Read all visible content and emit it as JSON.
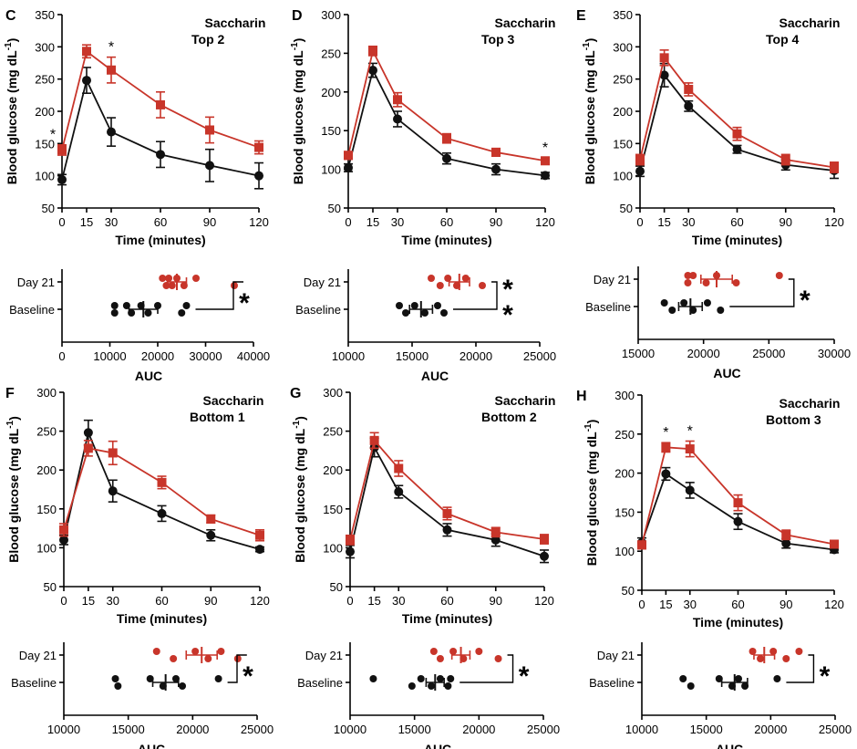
{
  "colors": {
    "day21": "#c8352a",
    "baseline": "#111111",
    "axis": "#000000"
  },
  "labels": {
    "time_axis": "Time (minutes)",
    "glucose_axis": "Blood glucose (mg dL",
    "glucose_unit_sup": "-1",
    "glucose_axis_close": ")",
    "auc_axis": "AUC",
    "group_day21": "Day 21",
    "group_baseline": "Baseline"
  },
  "chart_data": [
    {
      "panel": "C",
      "title": [
        "Saccharin",
        "Top 2"
      ],
      "type": "line",
      "x": [
        0,
        15,
        30,
        60,
        90,
        120
      ],
      "xlim": [
        0,
        120
      ],
      "ylim": [
        50,
        350
      ],
      "yticks": [
        50,
        100,
        150,
        200,
        250,
        300,
        350
      ],
      "series": [
        {
          "group": "day21",
          "values": [
            140,
            293,
            264,
            210,
            171,
            144
          ],
          "err": [
            8,
            10,
            20,
            20,
            20,
            10
          ]
        },
        {
          "group": "baseline",
          "values": [
            94,
            248,
            168,
            133,
            116,
            100
          ],
          "err": [
            8,
            20,
            22,
            20,
            25,
            20
          ]
        }
      ],
      "sig_x": [
        0,
        30
      ],
      "auc": {
        "xlim": [
          0,
          40000
        ],
        "xticks": [
          0,
          10000,
          20000,
          30000,
          40000
        ],
        "day21": {
          "points": [
            21000,
            21800,
            22300,
            23000,
            24000,
            25500,
            28000,
            36000
          ],
          "mean": 24000,
          "err": 2000
        },
        "baseline": {
          "points": [
            11000,
            11000,
            13500,
            14500,
            16500,
            18000,
            20000,
            25000,
            26000
          ],
          "mean": 17000,
          "err": 3000
        },
        "sig": "*"
      }
    },
    {
      "panel": "D",
      "title": [
        "Saccharin",
        "Top 3"
      ],
      "type": "line",
      "x": [
        0,
        15,
        30,
        60,
        90,
        120
      ],
      "xlim": [
        0,
        120
      ],
      "ylim": [
        50,
        300
      ],
      "yticks": [
        50,
        100,
        150,
        200,
        250,
        300
      ],
      "series": [
        {
          "group": "day21",
          "values": [
            118,
            253,
            190,
            140,
            122,
            111
          ],
          "err": [
            5,
            6,
            9,
            6,
            5,
            4
          ]
        },
        {
          "group": "baseline",
          "values": [
            102,
            228,
            165,
            114,
            100,
            92
          ],
          "err": [
            5,
            9,
            10,
            7,
            7,
            4
          ]
        }
      ],
      "sig_x": [
        120
      ],
      "auc": {
        "xlim": [
          10000,
          25000
        ],
        "xticks": [
          10000,
          15000,
          20000,
          25000
        ],
        "day21": {
          "points": [
            16500,
            17200,
            17800,
            18500,
            19200,
            20500
          ],
          "mean": 18700,
          "err": 800
        },
        "baseline": {
          "points": [
            14000,
            14500,
            15200,
            16000,
            17000,
            17500
          ],
          "mean": 15700,
          "err": 900
        },
        "sig": "**"
      }
    },
    {
      "panel": "E",
      "title": [
        "Saccharin",
        "Top 4"
      ],
      "type": "line",
      "x": [
        0,
        15,
        30,
        60,
        90,
        120
      ],
      "xlim": [
        0,
        120
      ],
      "ylim": [
        50,
        350
      ],
      "yticks": [
        50,
        100,
        150,
        200,
        250,
        300,
        350
      ],
      "series": [
        {
          "group": "day21",
          "values": [
            125,
            283,
            234,
            165,
            125,
            113
          ],
          "err": [
            8,
            12,
            10,
            10,
            8,
            8
          ]
        },
        {
          "group": "baseline",
          "values": [
            107,
            256,
            208,
            141,
            117,
            108
          ],
          "err": [
            8,
            18,
            8,
            6,
            8,
            12
          ]
        }
      ],
      "sig_x": [],
      "auc": {
        "xlim": [
          15000,
          30000
        ],
        "xticks": [
          15000,
          20000,
          25000,
          30000
        ],
        "day21": {
          "points": [
            18800,
            18800,
            19200,
            20200,
            21000,
            22500,
            25800
          ],
          "mean": 21000,
          "err": 1200
        },
        "baseline": {
          "points": [
            17000,
            17600,
            18500,
            19200,
            20300,
            21300
          ],
          "mean": 19000,
          "err": 900
        },
        "sig": "*"
      }
    },
    {
      "panel": "F",
      "title": [
        "Saccharin",
        "Bottom 1"
      ],
      "type": "line",
      "x": [
        0,
        15,
        30,
        60,
        90,
        120
      ],
      "xlim": [
        0,
        120
      ],
      "ylim": [
        50,
        300
      ],
      "yticks": [
        50,
        100,
        150,
        200,
        250,
        300
      ],
      "series": [
        {
          "group": "day21",
          "values": [
            123,
            228,
            222,
            184,
            137,
            116
          ],
          "err": [
            8,
            10,
            15,
            8,
            5,
            7
          ]
        },
        {
          "group": "baseline",
          "values": [
            110,
            248,
            173,
            144,
            116,
            98
          ],
          "err": [
            6,
            16,
            14,
            10,
            7,
            3
          ]
        }
      ],
      "sig_x": [],
      "auc": {
        "xlim": [
          10000,
          25000
        ],
        "xticks": [
          10000,
          15000,
          20000,
          25000
        ],
        "day21": {
          "points": [
            17200,
            18500,
            20200,
            21200,
            22200,
            23500
          ],
          "mean": 20700,
          "err": 1200
        },
        "baseline": {
          "points": [
            14000,
            14200,
            16700,
            17700,
            18700,
            19200,
            22000
          ],
          "mean": 17900,
          "err": 1000
        },
        "sig": "*"
      }
    },
    {
      "panel": "G",
      "title": [
        "Saccharin",
        "Bottom 2"
      ],
      "type": "line",
      "x": [
        0,
        15,
        30,
        60,
        90,
        120
      ],
      "xlim": [
        0,
        120
      ],
      "ylim": [
        50,
        300
      ],
      "yticks": [
        50,
        100,
        150,
        200,
        250,
        300
      ],
      "series": [
        {
          "group": "day21",
          "values": [
            110,
            238,
            202,
            144,
            120,
            111
          ],
          "err": [
            6,
            10,
            10,
            8,
            6,
            6
          ]
        },
        {
          "group": "baseline",
          "values": [
            95,
            229,
            172,
            123,
            110,
            89
          ],
          "err": [
            8,
            12,
            8,
            8,
            8,
            8
          ]
        }
      ],
      "sig_x": [],
      "auc": {
        "xlim": [
          10000,
          25000
        ],
        "xticks": [
          10000,
          15000,
          20000,
          25000
        ],
        "day21": {
          "points": [
            16500,
            17000,
            18000,
            18800,
            20000,
            21500
          ],
          "mean": 18600,
          "err": 700
        },
        "baseline": {
          "points": [
            11800,
            14800,
            15500,
            16300,
            17000,
            17600,
            17800
          ],
          "mean": 16600,
          "err": 700
        },
        "sig": "*"
      }
    },
    {
      "panel": "H",
      "title": [
        "Saccharin",
        "Bottom 3"
      ],
      "type": "line",
      "x": [
        0,
        15,
        30,
        60,
        90,
        120
      ],
      "xlim": [
        0,
        120
      ],
      "ylim": [
        50,
        300
      ],
      "yticks": [
        50,
        100,
        150,
        200,
        250,
        300
      ],
      "series": [
        {
          "group": "day21",
          "values": [
            108,
            233,
            231,
            162,
            121,
            109
          ],
          "err": [
            5,
            6,
            10,
            10,
            6,
            4
          ]
        },
        {
          "group": "baseline",
          "values": [
            111,
            199,
            178,
            138,
            110,
            102
          ],
          "err": [
            6,
            8,
            10,
            10,
            6,
            4
          ]
        }
      ],
      "sig_x": [
        15,
        30
      ],
      "auc": {
        "xlim": [
          10000,
          25000
        ],
        "xticks": [
          10000,
          15000,
          20000,
          25000
        ],
        "day21": {
          "points": [
            18600,
            19200,
            20200,
            21200,
            22200
          ],
          "mean": 19500,
          "err": 800
        },
        "baseline": {
          "points": [
            13200,
            13800,
            16000,
            17000,
            17500,
            18000,
            20500
          ],
          "mean": 17200,
          "err": 1000
        },
        "sig": "*"
      }
    }
  ]
}
